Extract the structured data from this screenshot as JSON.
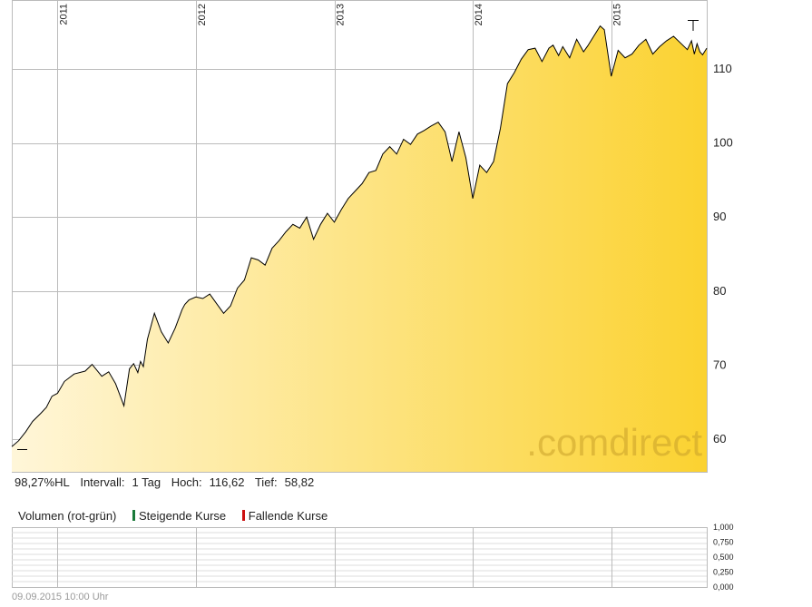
{
  "footer": {
    "timestamp": "09.09.2015 10:00 Uhr"
  },
  "info": {
    "perf": "98,27%HL",
    "interval_label": "Intervall:",
    "interval_value": "1 Tag",
    "high_label": "Hoch:",
    "high_value": "116,62",
    "low_label": "Tief:",
    "low_value": "58,82"
  },
  "volume": {
    "title": "Volumen (rot-grün)",
    "rising_label": "Steigende Kurse",
    "falling_label": "Fallende Kurse",
    "rising_color": "#1a7a3a",
    "falling_color": "#cc1111",
    "ticks": [
      "1,000",
      "0,750",
      "0,500",
      "0,250",
      "0,000"
    ]
  },
  "watermark": {
    "text_a": ".com",
    "text_b": "direct"
  },
  "colors": {
    "fill_light": "#fff6d9",
    "fill_dark": "#fbd230",
    "line": "#000000",
    "grid": "#bbbbbb"
  },
  "chart_data": {
    "type": "area",
    "x_tick_labels": [
      "2011",
      "2012",
      "2013",
      "2014",
      "2015"
    ],
    "y_ticks": [
      60,
      70,
      80,
      90,
      100,
      110
    ],
    "y_tick_labels": [
      "60",
      "70",
      "80",
      "90",
      "100",
      "110"
    ],
    "ylim": [
      55.6,
      119.3
    ],
    "xlim": [
      2010.67,
      2015.69
    ],
    "grid": true,
    "x": [
      2010.67,
      2010.72,
      2010.77,
      2010.82,
      2010.88,
      2010.92,
      2010.96,
      2011.0,
      2011.05,
      2011.12,
      2011.2,
      2011.25,
      2011.32,
      2011.37,
      2011.42,
      2011.48,
      2011.52,
      2011.55,
      2011.58,
      2011.6,
      2011.62,
      2011.65,
      2011.7,
      2011.75,
      2011.8,
      2011.85,
      2011.9,
      2011.92,
      2011.95,
      2012.0,
      2012.05,
      2012.1,
      2012.15,
      2012.2,
      2012.25,
      2012.3,
      2012.35,
      2012.4,
      2012.45,
      2012.5,
      2012.55,
      2012.6,
      2012.65,
      2012.7,
      2012.75,
      2012.8,
      2012.85,
      2012.9,
      2012.95,
      2013.0,
      2013.05,
      2013.1,
      2013.15,
      2013.2,
      2013.25,
      2013.3,
      2013.35,
      2013.4,
      2013.45,
      2013.5,
      2013.55,
      2013.6,
      2013.65,
      2013.7,
      2013.75,
      2013.8,
      2013.85,
      2013.9,
      2013.95,
      2014.0,
      2014.05,
      2014.1,
      2014.15,
      2014.2,
      2014.25,
      2014.3,
      2014.35,
      2014.4,
      2014.45,
      2014.5,
      2014.55,
      2014.58,
      2014.62,
      2014.65,
      2014.7,
      2014.72,
      2014.75,
      2014.8,
      2014.83,
      2014.88,
      2014.92,
      2014.95,
      2015.0,
      2015.05,
      2015.1,
      2015.15,
      2015.2,
      2015.25,
      2015.3,
      2015.35,
      2015.4,
      2015.45,
      2015.5,
      2015.55,
      2015.58,
      2015.6,
      2015.62,
      2015.64,
      2015.66,
      2015.69
    ],
    "y": [
      59,
      59.8,
      61,
      62.4,
      63.5,
      64.3,
      65.8,
      66.2,
      67.8,
      68.8,
      69.2,
      70.1,
      68.5,
      69.1,
      67.5,
      64.5,
      69.5,
      70.2,
      69,
      70.5,
      69.8,
      73.5,
      77,
      74.5,
      73,
      75,
      77.5,
      78.2,
      78.8,
      79.2,
      79,
      79.6,
      78.3,
      77,
      78,
      80.4,
      81.5,
      84.5,
      84.2,
      83.5,
      85.8,
      86.8,
      88,
      89,
      88.5,
      90,
      87,
      89,
      90.5,
      89.3,
      91,
      92.5,
      93.5,
      94.5,
      96,
      96.3,
      98.5,
      99.5,
      98.5,
      100.5,
      99.8,
      101.2,
      101.7,
      102.3,
      102.8,
      101.5,
      97.5,
      101.5,
      98,
      92.5,
      97,
      96,
      97.5,
      102,
      108,
      109.5,
      111.3,
      112.6,
      112.8,
      111,
      112.8,
      113.2,
      111.8,
      113,
      111.5,
      112.5,
      114,
      112.3,
      113.1,
      114.6,
      115.8,
      115.3,
      109,
      112.5,
      111.5,
      112,
      113.2,
      114,
      112,
      113,
      113.8,
      114.4,
      113.5,
      112.6,
      113.8,
      112,
      113.4,
      112.3,
      111.9,
      112.8
    ]
  }
}
